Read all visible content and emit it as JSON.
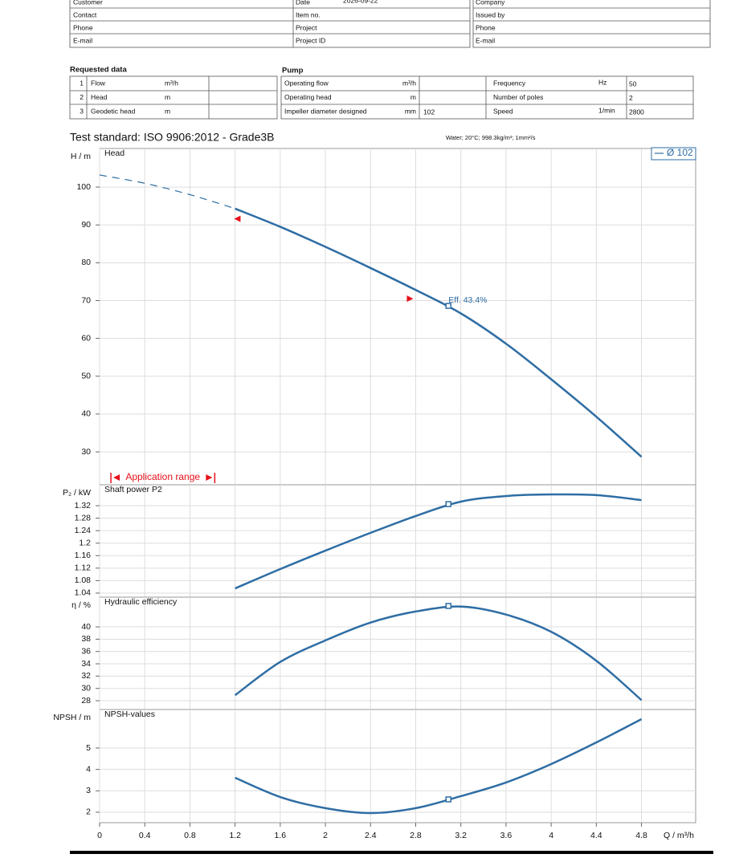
{
  "header_table": {
    "rows": [
      {
        "left": "Customer",
        "middle": "Date",
        "middle_value": "2026-09-22",
        "right": "Company"
      },
      {
        "left": "Contact",
        "middle": "Item no.",
        "right": "Issued by"
      },
      {
        "left": "Phone",
        "middle": "Project",
        "right": "Phone"
      },
      {
        "left": "E-mail",
        "middle": "Project ID",
        "right": "E-mail"
      }
    ]
  },
  "requested_data": {
    "title": "Requested data",
    "rows": [
      {
        "no": 1,
        "label": "Flow",
        "unit": "m³/h"
      },
      {
        "no": 2,
        "label": "Head",
        "unit": "m"
      },
      {
        "no": 3,
        "label": "Geodetic head",
        "unit": "m"
      }
    ]
  },
  "pump": {
    "title": "Pump",
    "rows": [
      {
        "label": "Operating flow",
        "unit": "m³/h",
        "label2": "Frequency",
        "unit2": "Hz",
        "value2": 50
      },
      {
        "label": "Operating head",
        "unit": "m",
        "label2": "Number of poles",
        "value2": 2
      },
      {
        "label": "Impeller diameter designed",
        "unit": "mm",
        "value": 102,
        "label2": "Speed",
        "unit2": "1/min",
        "value2": 2800
      }
    ]
  },
  "test_standard": "Test standard: ISO 9906:2012 - Grade3B",
  "medium": "Water; 20°C; 998.3kg/m³; 1mm²/s",
  "chart_data": [
    {
      "type": "line",
      "label": "Head",
      "ylabel": "H / m",
      "xlim": [
        0,
        5.28
      ],
      "ylim": [
        21.3,
        110.2
      ],
      "yticks": [
        30,
        40,
        50,
        60,
        70,
        80,
        90,
        100
      ],
      "grid": true,
      "legend": "top-right",
      "series": [
        {
          "name": "Ø 102",
          "color": "#2e6da4",
          "x": [
            1.2,
            1.6,
            2.0,
            2.4,
            2.8,
            3.2,
            3.6,
            4.0,
            4.4,
            4.8
          ],
          "values": [
            94.3,
            89.5,
            84.2,
            78.6,
            72.8,
            66.6,
            58.6,
            49.2,
            39.3,
            28.7
          ]
        },
        {
          "color": "#2e6da4",
          "dash": "dashed",
          "x": [
            0,
            0.4,
            0.8,
            1.2
          ],
          "values": [
            103.2,
            101.0,
            98.0,
            94.3
          ]
        }
      ],
      "operating_point": {
        "x": 3.09,
        "y": 68.6
      },
      "annotation": "Eff.  43.4%",
      "markers": [
        {
          "x": 1.22,
          "y": 91.6,
          "direction": "left",
          "color": "#e8101a"
        },
        {
          "x": 2.75,
          "y": 70.5,
          "direction": "right",
          "color": "#e8101a"
        }
      ],
      "application_range": {
        "label": "Application range",
        "color": "#e8101a",
        "x": [
          0.1,
          1.02
        ]
      }
    },
    {
      "type": "line",
      "label": "Shaft power P2",
      "ylabel": "P₂ / kW",
      "xlim": [
        0,
        5.28
      ],
      "ylim": [
        1.027,
        1.387
      ],
      "yticks": [
        1.04,
        1.08,
        1.12,
        1.16,
        1.2,
        1.24,
        1.28,
        1.32
      ],
      "grid": true,
      "series": [
        {
          "color": "#2e6da4",
          "x": [
            1.2,
            1.6,
            2.0,
            2.4,
            2.8,
            3.2,
            3.6,
            4.0,
            4.4,
            4.8
          ],
          "values": [
            1.055,
            1.117,
            1.176,
            1.233,
            1.287,
            1.333,
            1.351,
            1.356,
            1.354,
            1.338
          ]
        }
      ],
      "operating_point": {
        "x": 3.09,
        "y": 1.325
      }
    },
    {
      "type": "line",
      "label": "Hydraulic efficiency",
      "ylabel": "η / %",
      "xlim": [
        0,
        5.28
      ],
      "ylim": [
        26.57,
        44.83
      ],
      "yticks": [
        28,
        30,
        32,
        34,
        36,
        38,
        40
      ],
      "grid": true,
      "series": [
        {
          "color": "#2e6da4",
          "x": [
            1.2,
            1.6,
            2.0,
            2.4,
            2.8,
            3.2,
            3.6,
            4.0,
            4.4,
            4.8
          ],
          "values": [
            28.9,
            34.3,
            37.8,
            40.7,
            42.5,
            43.3,
            42.0,
            39.2,
            34.5,
            28.1
          ]
        }
      ],
      "operating_point": {
        "x": 3.09,
        "y": 43.4
      }
    },
    {
      "type": "line",
      "label": "NPSH-values",
      "ylabel": "NPSH / m",
      "xlabel": "Q / m³/h",
      "xlim": [
        0,
        5.28
      ],
      "ylim": [
        1.51,
        6.8
      ],
      "yticks": [
        2,
        3,
        4,
        5
      ],
      "xticks": [
        0,
        0.4,
        0.8,
        1.2,
        1.6,
        2,
        2.4,
        2.8,
        3.2,
        3.6,
        4,
        4.4,
        4.8
      ],
      "grid": true,
      "series": [
        {
          "color": "#2e6da4",
          "x": [
            1.2,
            1.6,
            2.0,
            2.4,
            2.8,
            3.2,
            3.6,
            4.0,
            4.4,
            4.8
          ],
          "values": [
            3.61,
            2.71,
            2.19,
            1.96,
            2.19,
            2.75,
            3.39,
            4.25,
            5.26,
            6.35
          ]
        }
      ],
      "operating_point": {
        "x": 3.09,
        "y": 2.6
      }
    }
  ]
}
